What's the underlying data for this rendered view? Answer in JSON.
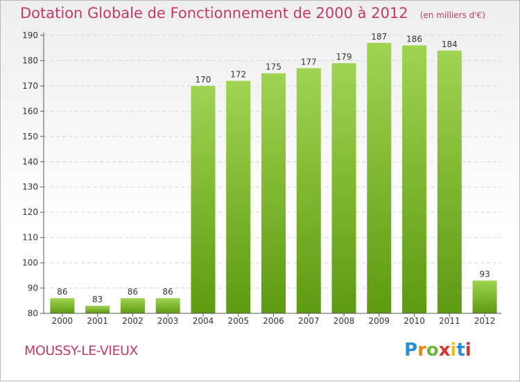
{
  "header": {
    "title": "Dotation Globale de Fonctionnement de 2000 à 2012",
    "unit_note": "(en milliers d'€)"
  },
  "footer": {
    "commune": "MOUSSY-LE-VIEUX",
    "logo_letters": [
      "P",
      "r",
      "o",
      "x",
      "i",
      "t",
      "i"
    ],
    "logo_colors": [
      "#2a8fd0",
      "#e8871e",
      "#6db33f",
      "#d8342b",
      "#e8c019",
      "#2a8fd0",
      "#d8342b"
    ]
  },
  "chart_data": {
    "type": "bar",
    "categories": [
      "2000",
      "2001",
      "2002",
      "2003",
      "2004",
      "2005",
      "2006",
      "2007",
      "2008",
      "2009",
      "2010",
      "2011",
      "2012"
    ],
    "values": [
      86,
      83,
      86,
      86,
      170,
      172,
      175,
      177,
      179,
      187,
      186,
      184,
      93
    ],
    "ylim": [
      80,
      190
    ],
    "yticks": [
      80,
      90,
      100,
      110,
      120,
      130,
      140,
      150,
      160,
      170,
      180,
      190
    ],
    "grid": true,
    "bar_color_top": "#9fd452",
    "bar_color_bottom": "#5e9a12",
    "title_color": "#c03a65"
  }
}
